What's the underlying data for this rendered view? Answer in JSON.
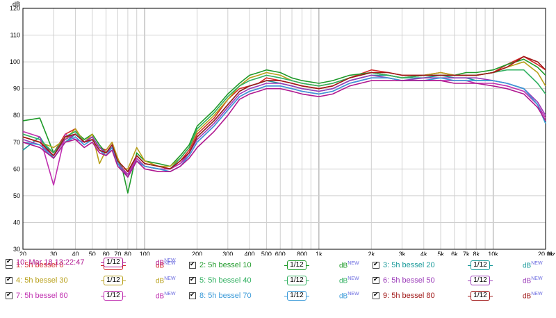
{
  "chart_data": {
    "type": "line",
    "ylabel": "dB",
    "xunit": "Hz",
    "xscale": "log",
    "xlim": [
      20,
      20000
    ],
    "ylim": [
      30,
      120
    ],
    "grid": true,
    "y_ticks": [
      30,
      40,
      50,
      60,
      70,
      80,
      90,
      100,
      110,
      120
    ],
    "x_ticks": [
      {
        "v": 20,
        "t": "20"
      },
      {
        "v": 30,
        "t": "30"
      },
      {
        "v": 40,
        "t": "40"
      },
      {
        "v": 50,
        "t": "50"
      },
      {
        "v": 60,
        "t": "60"
      },
      {
        "v": 70,
        "t": "70"
      },
      {
        "v": 80,
        "t": "80"
      },
      {
        "v": 100,
        "t": "100"
      },
      {
        "v": 200,
        "t": "200"
      },
      {
        "v": 300,
        "t": "300"
      },
      {
        "v": 400,
        "t": "400"
      },
      {
        "v": 500,
        "t": "500"
      },
      {
        "v": 600,
        "t": "600"
      },
      {
        "v": 800,
        "t": "800"
      },
      {
        "v": 1000,
        "t": "1k"
      },
      {
        "v": 2000,
        "t": "2k"
      },
      {
        "v": 3000,
        "t": "3k"
      },
      {
        "v": 4000,
        "t": "4k"
      },
      {
        "v": 5000,
        "t": "5k"
      },
      {
        "v": 6000,
        "t": "6k"
      },
      {
        "v": 7000,
        "t": "7k"
      },
      {
        "v": 8000,
        "t": "8k"
      },
      {
        "v": 10000,
        "t": "10k"
      },
      {
        "v": 20000,
        "t": "20.0k"
      }
    ],
    "x": [
      20,
      25,
      30,
      35,
      40,
      45,
      50,
      55,
      60,
      65,
      70,
      75,
      80,
      90,
      100,
      120,
      140,
      160,
      180,
      200,
      250,
      300,
      350,
      400,
      450,
      500,
      600,
      700,
      800,
      1000,
      1200,
      1500,
      2000,
      2500,
      3000,
      4000,
      5000,
      6000,
      7000,
      8000,
      10000,
      12000,
      15000,
      18000,
      20000
    ],
    "series": [
      {
        "name": "1: 5h bessel 0",
        "color": "#d42a2a",
        "values": [
          72,
          70,
          66,
          73,
          75,
          70,
          72,
          68,
          67,
          70,
          63,
          61,
          59,
          65,
          62,
          61,
          60,
          63,
          67,
          73,
          79,
          86,
          90,
          91,
          92,
          94,
          93,
          92,
          91,
          90,
          91,
          94,
          97,
          96,
          95,
          95,
          96,
          95,
          95,
          95,
          96,
          99,
          102,
          99,
          97
        ]
      },
      {
        "name": "2: 5h bessel 10",
        "color": "#1f9a2a",
        "values": [
          78,
          79,
          66,
          72,
          74,
          71,
          73,
          69,
          66,
          69,
          64,
          59,
          51,
          66,
          63,
          62,
          61,
          65,
          69,
          76,
          82,
          88,
          92,
          95,
          96,
          97,
          96,
          94,
          93,
          92,
          93,
          95,
          96,
          95,
          94,
          95,
          95,
          95,
          96,
          96,
          97,
          99,
          101,
          98,
          95
        ]
      },
      {
        "name": "3: 5h bessel 20",
        "color": "#1a9a9a",
        "values": [
          67,
          72,
          64,
          70,
          73,
          70,
          72,
          68,
          66,
          68,
          62,
          60,
          57,
          63,
          61,
          60,
          60,
          62,
          66,
          72,
          78,
          84,
          89,
          91,
          92,
          93,
          92,
          91,
          90,
          89,
          90,
          93,
          95,
          95,
          94,
          94,
          95,
          94,
          94,
          93,
          93,
          92,
          90,
          84,
          77
        ]
      },
      {
        "name": "4: 5h bessel 30",
        "color": "#b8a01a",
        "values": [
          72,
          70,
          68,
          71,
          75,
          70,
          73,
          62,
          67,
          70,
          64,
          60,
          60,
          68,
          63,
          61,
          61,
          64,
          68,
          74,
          80,
          86,
          91,
          94,
          95,
          96,
          95,
          93,
          92,
          91,
          92,
          94,
          96,
          95,
          94,
          95,
          96,
          95,
          95,
          95,
          96,
          98,
          100,
          96,
          91
        ]
      },
      {
        "name": "5: 5h bessel 40",
        "color": "#30b060",
        "values": [
          73,
          71,
          66,
          72,
          74,
          70,
          72,
          68,
          66,
          69,
          63,
          60,
          58,
          65,
          62,
          61,
          60,
          64,
          68,
          75,
          81,
          87,
          91,
          93,
          94,
          95,
          94,
          93,
          92,
          91,
          92,
          94,
          96,
          95,
          94,
          95,
          95,
          95,
          95,
          95,
          96,
          97,
          97,
          92,
          88
        ]
      },
      {
        "name": "6: 5h bessel 50",
        "color": "#9a3ab8",
        "values": [
          71,
          69,
          65,
          71,
          73,
          70,
          72,
          68,
          66,
          68,
          62,
          60,
          57,
          64,
          61,
          60,
          60,
          62,
          66,
          71,
          77,
          83,
          88,
          90,
          91,
          92,
          92,
          91,
          90,
          89,
          90,
          93,
          95,
          94,
          93,
          94,
          94,
          94,
          94,
          94,
          93,
          92,
          90,
          85,
          80
        ]
      },
      {
        "name": "7: 5h bessel 60",
        "color": "#c030b0",
        "values": [
          74,
          72,
          54,
          73,
          71,
          70,
          71,
          67,
          66,
          69,
          62,
          60,
          58,
          64,
          61,
          60,
          60,
          62,
          65,
          70,
          76,
          82,
          87,
          89,
          90,
          91,
          91,
          90,
          89,
          88,
          89,
          92,
          94,
          94,
          93,
          93,
          93,
          93,
          93,
          92,
          92,
          91,
          89,
          84,
          79
        ]
      },
      {
        "name": "8: 5h bessel 70",
        "color": "#3a9ad8",
        "values": [
          70,
          69,
          64,
          70,
          72,
          69,
          71,
          67,
          65,
          68,
          62,
          59,
          57,
          63,
          61,
          60,
          59,
          61,
          65,
          70,
          76,
          82,
          87,
          89,
          90,
          91,
          91,
          90,
          89,
          88,
          89,
          92,
          94,
          94,
          93,
          93,
          94,
          93,
          93,
          93,
          93,
          92,
          90,
          84,
          77
        ]
      },
      {
        "name": "9: 5h bessel 80",
        "color": "#a01818",
        "values": [
          72,
          70,
          65,
          72,
          73,
          70,
          71,
          67,
          66,
          69,
          63,
          61,
          59,
          65,
          62,
          61,
          60,
          63,
          66,
          72,
          78,
          84,
          89,
          91,
          92,
          93,
          93,
          92,
          91,
          90,
          91,
          94,
          96,
          96,
          95,
          95,
          95,
          95,
          95,
          95,
          96,
          98,
          102,
          100,
          97
        ]
      },
      {
        "name": "10: Mar 18 13:22:47",
        "color": "#b01890",
        "values": [
          70,
          68,
          64,
          70,
          71,
          68,
          70,
          66,
          65,
          67,
          61,
          59,
          57,
          63,
          60,
          59,
          59,
          61,
          64,
          68,
          74,
          80,
          86,
          88,
          89,
          90,
          90,
          89,
          88,
          87,
          88,
          91,
          93,
          93,
          93,
          93,
          93,
          92,
          92,
          92,
          91,
          90,
          88,
          83,
          78
        ]
      }
    ]
  },
  "legend": [
    {
      "label": "1: 5h bessel 0",
      "smoothing": "1/12",
      "unit": "dB",
      "badge": "NEW",
      "color": "#d42a2a"
    },
    {
      "label": "2: 5h bessel 10",
      "smoothing": "1/12",
      "unit": "dB",
      "badge": "NEW",
      "color": "#1f9a2a"
    },
    {
      "label": "3: 5h bessel 20",
      "smoothing": "1/12",
      "unit": "dB",
      "badge": "NEW",
      "color": "#1a9a9a"
    },
    {
      "label": "4: 5h bessel 30",
      "smoothing": "1/12",
      "unit": "dB",
      "badge": "NEW",
      "color": "#b8a01a"
    },
    {
      "label": "5: 5h bessel 40",
      "smoothing": "1/12",
      "unit": "dB",
      "badge": "NEW",
      "color": "#30b060"
    },
    {
      "label": "6: 5h bessel 50",
      "smoothing": "1/12",
      "unit": "dB",
      "badge": "NEW",
      "color": "#9a3ab8"
    },
    {
      "label": "7: 5h bessel 60",
      "smoothing": "1/12",
      "unit": "dB",
      "badge": "NEW",
      "color": "#c030b0"
    },
    {
      "label": "8: 5h bessel 70",
      "smoothing": "1/12",
      "unit": "dB",
      "badge": "NEW",
      "color": "#3a9ad8"
    },
    {
      "label": "9: 5h bessel 80",
      "smoothing": "1/12",
      "unit": "dB",
      "badge": "NEW",
      "color": "#a01818"
    },
    {
      "label": "10: Mar 18 13:22:47",
      "smoothing": "1/12",
      "unit": "dB",
      "badge": "NEW",
      "color": "#b01890"
    }
  ]
}
